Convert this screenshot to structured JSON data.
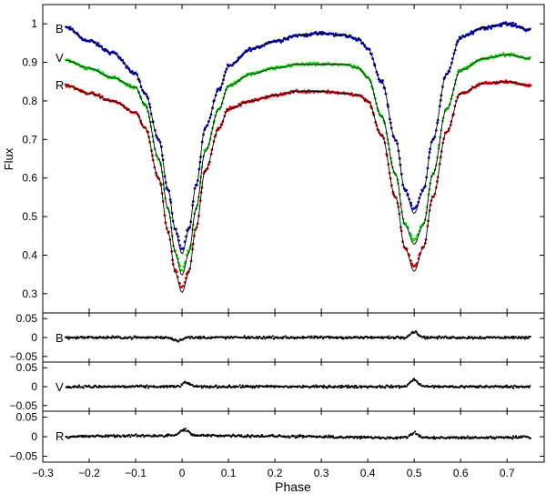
{
  "figure": {
    "xlabel": "Phase",
    "x_ticks": [
      "−0.3",
      "−0.2",
      "−0.1",
      "0",
      "0.1",
      "0.2",
      "0.3",
      "0.4",
      "0.5",
      "0.6",
      "0.7"
    ]
  },
  "chart_data": [
    {
      "type": "scatter",
      "panel": "light curves",
      "ylabel": "Flux",
      "xlim": [
        -0.3,
        0.78
      ],
      "ylim": [
        0.25,
        1.05
      ],
      "y_ticks": [
        "0.3",
        "0.4",
        "0.5",
        "0.6",
        "0.7",
        "0.8",
        "0.9",
        "1"
      ],
      "x_range_data": [
        -0.25,
        0.75
      ],
      "annotations": [
        "B",
        "V",
        "R"
      ],
      "series": [
        {
          "name": "B",
          "color": "#0000cc",
          "x": [
            -0.25,
            -0.2,
            -0.15,
            -0.1,
            -0.08,
            -0.05,
            -0.03,
            -0.015,
            0,
            0.015,
            0.03,
            0.05,
            0.08,
            0.1,
            0.15,
            0.2,
            0.25,
            0.3,
            0.35,
            0.38,
            0.4,
            0.43,
            0.46,
            0.48,
            0.5,
            0.52,
            0.54,
            0.57,
            0.6,
            0.65,
            0.7,
            0.75
          ],
          "y": [
            0.99,
            0.955,
            0.925,
            0.87,
            0.82,
            0.7,
            0.57,
            0.47,
            0.415,
            0.47,
            0.58,
            0.73,
            0.83,
            0.89,
            0.935,
            0.955,
            0.97,
            0.975,
            0.97,
            0.96,
            0.935,
            0.85,
            0.7,
            0.57,
            0.52,
            0.57,
            0.7,
            0.87,
            0.965,
            0.99,
            1.0,
            0.985
          ]
        },
        {
          "name": "V",
          "color": "#00dd00",
          "x": [
            -0.25,
            -0.2,
            -0.15,
            -0.1,
            -0.08,
            -0.05,
            -0.03,
            -0.015,
            0,
            0.015,
            0.03,
            0.05,
            0.08,
            0.1,
            0.15,
            0.2,
            0.25,
            0.3,
            0.35,
            0.38,
            0.4,
            0.43,
            0.46,
            0.48,
            0.5,
            0.52,
            0.54,
            0.57,
            0.6,
            0.65,
            0.7,
            0.75
          ],
          "y": [
            0.905,
            0.885,
            0.86,
            0.835,
            0.79,
            0.65,
            0.52,
            0.41,
            0.36,
            0.41,
            0.52,
            0.67,
            0.78,
            0.84,
            0.87,
            0.885,
            0.895,
            0.895,
            0.895,
            0.885,
            0.86,
            0.76,
            0.61,
            0.48,
            0.44,
            0.48,
            0.61,
            0.78,
            0.88,
            0.91,
            0.92,
            0.91
          ]
        },
        {
          "name": "R",
          "color": "#dd0000",
          "x": [
            -0.25,
            -0.2,
            -0.15,
            -0.1,
            -0.08,
            -0.05,
            -0.03,
            -0.015,
            0,
            0.015,
            0.03,
            0.05,
            0.08,
            0.1,
            0.15,
            0.2,
            0.25,
            0.3,
            0.35,
            0.38,
            0.4,
            0.43,
            0.46,
            0.48,
            0.5,
            0.52,
            0.54,
            0.57,
            0.6,
            0.65,
            0.7,
            0.75
          ],
          "y": [
            0.84,
            0.82,
            0.8,
            0.77,
            0.73,
            0.6,
            0.46,
            0.36,
            0.315,
            0.36,
            0.47,
            0.62,
            0.73,
            0.78,
            0.8,
            0.815,
            0.825,
            0.825,
            0.82,
            0.815,
            0.8,
            0.71,
            0.55,
            0.42,
            0.37,
            0.42,
            0.55,
            0.72,
            0.82,
            0.845,
            0.85,
            0.84
          ]
        }
      ],
      "model_color": "#000000"
    },
    {
      "type": "scatter",
      "panel": "residuals",
      "label": "B",
      "color": "#000000",
      "xlim": [
        -0.3,
        0.78
      ],
      "ylim": [
        -0.065,
        0.065
      ],
      "y_ticks": [
        "0.05",
        "0",
        "−0.05"
      ],
      "features": [
        {
          "x": -0.01,
          "y": -0.008
        },
        {
          "x": 0.5,
          "y": 0.015
        }
      ]
    },
    {
      "type": "scatter",
      "panel": "residuals",
      "label": "V",
      "color": "#000000",
      "xlim": [
        -0.3,
        0.78
      ],
      "ylim": [
        -0.065,
        0.065
      ],
      "y_ticks": [
        "0.05",
        "0",
        "−0.05"
      ],
      "features": [
        {
          "x": 0.01,
          "y": 0.01
        },
        {
          "x": 0.5,
          "y": 0.018
        }
      ]
    },
    {
      "type": "scatter",
      "panel": "residuals",
      "label": "R",
      "color": "#000000",
      "xlim": [
        -0.3,
        0.78
      ],
      "ylim": [
        -0.065,
        0.065
      ],
      "y_ticks": [
        "0.05",
        "0",
        "−0.05"
      ],
      "features": [
        {
          "x": 0.005,
          "y": 0.015
        },
        {
          "x": 0.5,
          "y": 0.012
        }
      ]
    }
  ]
}
